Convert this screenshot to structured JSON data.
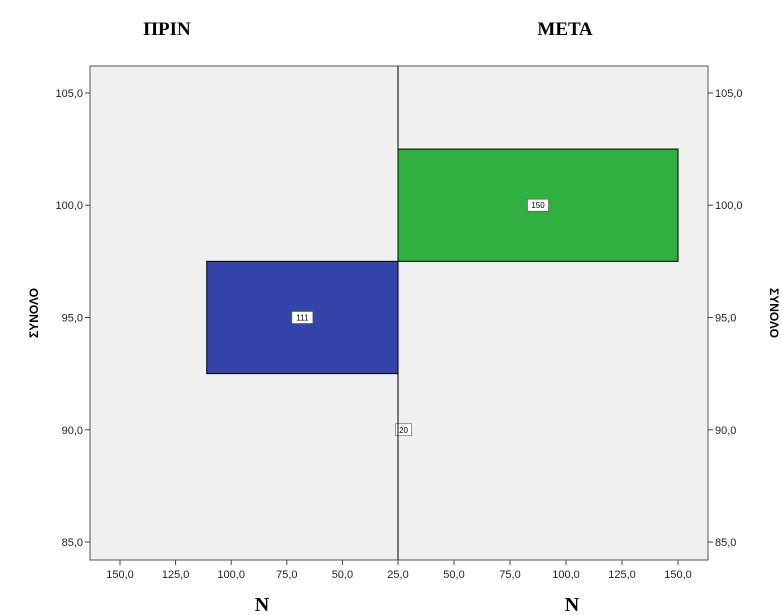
{
  "chart_data": {
    "type": "bar",
    "subtype": "population-pyramid",
    "panels": [
      {
        "title": "ΠΡΙΝ",
        "side": "left",
        "color": "#3345a8",
        "bars": [
          {
            "y": 95,
            "count": 111,
            "label": "111"
          },
          {
            "y": 90,
            "count": 20,
            "label": "20"
          }
        ]
      },
      {
        "title": "ΜΕΤΑ",
        "side": "right",
        "color": "#2fb040",
        "bars": [
          {
            "y": 100,
            "count": 150,
            "label": "150"
          }
        ]
      }
    ],
    "ylabel": "ΣΥΝΟΛΟ",
    "xlabel": "N",
    "ylim": [
      84.2,
      106.2
    ],
    "yticks": [
      85.0,
      90.0,
      95.0,
      100.0,
      105.0
    ],
    "ytick_labels": [
      "85,0",
      "90,0",
      "95,0",
      "100,0",
      "105,0"
    ],
    "bin_width": 5,
    "xticks_left": [
      150,
      125,
      100,
      75,
      50,
      25
    ],
    "xticks_left_labels": [
      "150,0",
      "125,0",
      "100,0",
      "75,0",
      "50,0",
      "25,0"
    ],
    "xticks_right": [
      50,
      75,
      100,
      125,
      150
    ],
    "xticks_right_labels": [
      "50,0",
      "75,0",
      "100,0",
      "125,0",
      "150,0"
    ],
    "grid": false,
    "background": "#f0f0f0"
  }
}
